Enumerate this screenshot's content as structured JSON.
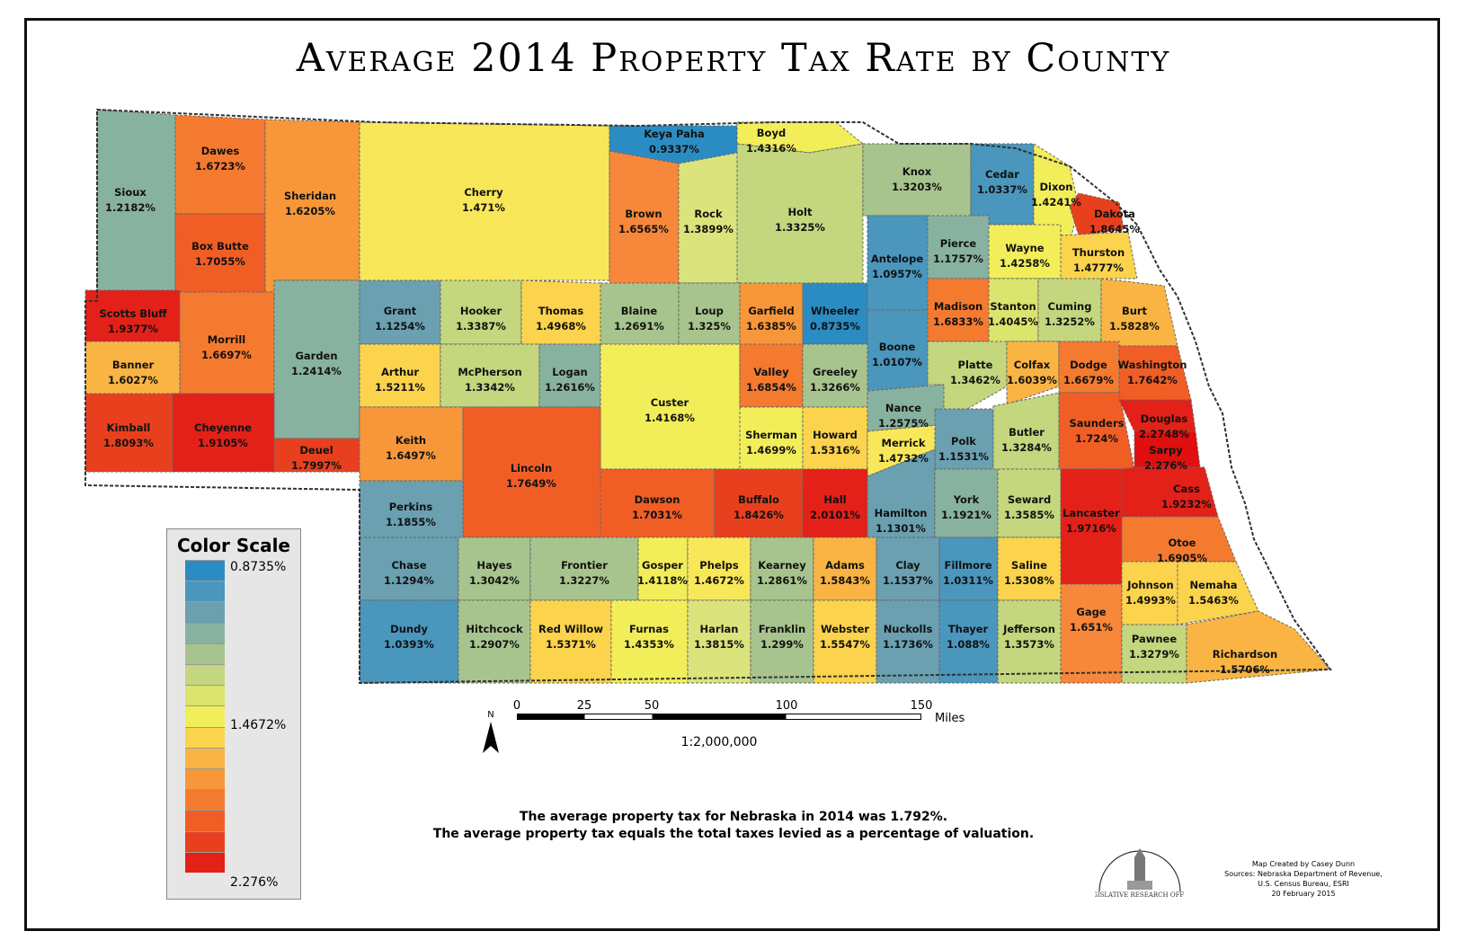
{
  "title": "Average 2014  Property Tax Rate by County",
  "legend": {
    "title": "Color Scale",
    "labels": [
      "0.8735%",
      "1.4672%",
      "2.276%"
    ],
    "colors": [
      "#2b8cc4",
      "#4a96bd",
      "#6aa0b0",
      "#88b2a0",
      "#a8c48e",
      "#c4d67e",
      "#dbe46c",
      "#f2ee5a",
      "#fbd34c",
      "#f9b443",
      "#f7973a",
      "#f47a30",
      "#f05e26",
      "#e8401e",
      "#e32118"
    ]
  },
  "scale": {
    "ticks": [
      "0",
      "25",
      "50",
      "100",
      "150"
    ],
    "units": "Miles",
    "north": "N",
    "ratio": "1:2,000,000"
  },
  "note": {
    "line1": "The average property tax for Nebraska in 2014 was 1.792%.",
    "line2": "The average property tax equals the total taxes levied as a percentage of valuation."
  },
  "credits": {
    "line1": "Map Created by Casey Dunn",
    "line2": "Sources: Nebraska Department of Revenue,",
    "line3": "U.S. Census Bureau, ESRI",
    "line4": "20 February 2015",
    "logo_text": "LEGISLATIVE RESEARCH OFFICE"
  },
  "counties": [
    {
      "name": "Sioux",
      "rate": "1.2182%",
      "color": "#88b2a0"
    },
    {
      "name": "Dawes",
      "rate": "1.6723%",
      "color": "#f47a30"
    },
    {
      "name": "Box Butte",
      "rate": "1.7055%",
      "color": "#f05e26"
    },
    {
      "name": "Sheridan",
      "rate": "1.6205%",
      "color": "#f7973a"
    },
    {
      "name": "Cherry",
      "rate": "1.471%",
      "color": "#f9e75a"
    },
    {
      "name": "Keya Paha",
      "rate": "0.9337%",
      "color": "#2b8cc4"
    },
    {
      "name": "Boyd",
      "rate": "1.4316%",
      "color": "#f2ee5a"
    },
    {
      "name": "Brown",
      "rate": "1.6565%",
      "color": "#f7873a"
    },
    {
      "name": "Rock",
      "rate": "1.3899%",
      "color": "#dbe47c"
    },
    {
      "name": "Holt",
      "rate": "1.3325%",
      "color": "#c4d67e"
    },
    {
      "name": "Knox",
      "rate": "1.3203%",
      "color": "#a8c48e"
    },
    {
      "name": "Cedar",
      "rate": "1.0337%",
      "color": "#4a96bd"
    },
    {
      "name": "Dixon",
      "rate": "1.4241%",
      "color": "#f2ee5a"
    },
    {
      "name": "Dakota",
      "rate": "1.8645%",
      "color": "#e8401e"
    },
    {
      "name": "Scotts Bluff",
      "rate": "1.9377%",
      "color": "#e32118"
    },
    {
      "name": "Morrill",
      "rate": "1.6697%",
      "color": "#f47a30"
    },
    {
      "name": "Garden",
      "rate": "1.2414%",
      "color": "#88b2a0"
    },
    {
      "name": "Grant",
      "rate": "1.1254%",
      "color": "#6aa0b0"
    },
    {
      "name": "Hooker",
      "rate": "1.3387%",
      "color": "#c4d67e"
    },
    {
      "name": "Thomas",
      "rate": "1.4968%",
      "color": "#fbd34c"
    },
    {
      "name": "Blaine",
      "rate": "1.2691%",
      "color": "#a8c48e"
    },
    {
      "name": "Loup",
      "rate": "1.325%",
      "color": "#a8c48e"
    },
    {
      "name": "Garfield",
      "rate": "1.6385%",
      "color": "#f7973a"
    },
    {
      "name": "Wheeler",
      "rate": "0.8735%",
      "color": "#2b8cc4"
    },
    {
      "name": "Antelope",
      "rate": "1.0957%",
      "color": "#4a96bd"
    },
    {
      "name": "Pierce",
      "rate": "1.1757%",
      "color": "#88b2a0"
    },
    {
      "name": "Wayne",
      "rate": "1.4258%",
      "color": "#f2ee5a"
    },
    {
      "name": "Thurston",
      "rate": "1.4777%",
      "color": "#fbd34c"
    },
    {
      "name": "Banner",
      "rate": "1.6027%",
      "color": "#f9b443"
    },
    {
      "name": "Arthur",
      "rate": "1.5211%",
      "color": "#fbd34c"
    },
    {
      "name": "McPherson",
      "rate": "1.3342%",
      "color": "#c4d67e"
    },
    {
      "name": "Logan",
      "rate": "1.2616%",
      "color": "#88b2a0"
    },
    {
      "name": "Custer",
      "rate": "1.4168%",
      "color": "#f2ee5a"
    },
    {
      "name": "Valley",
      "rate": "1.6854%",
      "color": "#f47a30"
    },
    {
      "name": "Greeley",
      "rate": "1.3266%",
      "color": "#a8c48e"
    },
    {
      "name": "Boone",
      "rate": "1.0107%",
      "color": "#4a96bd"
    },
    {
      "name": "Madison",
      "rate": "1.6833%",
      "color": "#f47a30"
    },
    {
      "name": "Stanton",
      "rate": "1.4045%",
      "color": "#dbe46c"
    },
    {
      "name": "Cuming",
      "rate": "1.3252%",
      "color": "#c4d67e"
    },
    {
      "name": "Burt",
      "rate": "1.5828%",
      "color": "#f9b443"
    },
    {
      "name": "Kimball",
      "rate": "1.8093%",
      "color": "#e8401e"
    },
    {
      "name": "Cheyenne",
      "rate": "1.9105%",
      "color": "#e32118"
    },
    {
      "name": "Deuel",
      "rate": "1.7997%",
      "color": "#e8401e"
    },
    {
      "name": "Keith",
      "rate": "1.6497%",
      "color": "#f7973a"
    },
    {
      "name": "Lincoln",
      "rate": "1.7649%",
      "color": "#f05e26"
    },
    {
      "name": "Nance",
      "rate": "1.2575%",
      "color": "#88b2a0"
    },
    {
      "name": "Platte",
      "rate": "1.3462%",
      "color": "#c4d67e"
    },
    {
      "name": "Colfax",
      "rate": "1.6039%",
      "color": "#f9b443"
    },
    {
      "name": "Dodge",
      "rate": "1.6679%",
      "color": "#f47a30"
    },
    {
      "name": "Washington",
      "rate": "1.7642%",
      "color": "#f05e26"
    },
    {
      "name": "Sherman",
      "rate": "1.4699%",
      "color": "#f2ee5a"
    },
    {
      "name": "Howard",
      "rate": "1.5316%",
      "color": "#fbd34c"
    },
    {
      "name": "Merrick",
      "rate": "1.4732%",
      "color": "#f9e75a"
    },
    {
      "name": "Polk",
      "rate": "1.1531%",
      "color": "#6aa0b0"
    },
    {
      "name": "Butler",
      "rate": "1.3284%",
      "color": "#c4d67e"
    },
    {
      "name": "Saunders",
      "rate": "1.724%",
      "color": "#f05e26"
    },
    {
      "name": "Douglas",
      "rate": "2.2748%",
      "color": "#e32118"
    },
    {
      "name": "Sarpy",
      "rate": "2.276%",
      "color": "#e01010"
    },
    {
      "name": "Perkins",
      "rate": "1.1855%",
      "color": "#6aa0b0"
    },
    {
      "name": "Dawson",
      "rate": "1.7031%",
      "color": "#f05e26"
    },
    {
      "name": "Buffalo",
      "rate": "1.8426%",
      "color": "#e8401e"
    },
    {
      "name": "Hall",
      "rate": "2.0101%",
      "color": "#e32118"
    },
    {
      "name": "Hamilton",
      "rate": "1.1301%",
      "color": "#6aa0b0"
    },
    {
      "name": "York",
      "rate": "1.1921%",
      "color": "#88b2a0"
    },
    {
      "name": "Seward",
      "rate": "1.3585%",
      "color": "#c4d67e"
    },
    {
      "name": "Lancaster",
      "rate": "1.9716%",
      "color": "#e32118"
    },
    {
      "name": "Cass",
      "rate": "1.9232%",
      "color": "#e32118"
    },
    {
      "name": "Chase",
      "rate": "1.1294%",
      "color": "#6aa0b0"
    },
    {
      "name": "Hayes",
      "rate": "1.3042%",
      "color": "#a8c48e"
    },
    {
      "name": "Frontier",
      "rate": "1.3227%",
      "color": "#a8c48e"
    },
    {
      "name": "Gosper",
      "rate": "1.4118%",
      "color": "#f2ee5a"
    },
    {
      "name": "Phelps",
      "rate": "1.4672%",
      "color": "#f9e75a"
    },
    {
      "name": "Kearney",
      "rate": "1.2861%",
      "color": "#a8c48e"
    },
    {
      "name": "Adams",
      "rate": "1.5843%",
      "color": "#f9b443"
    },
    {
      "name": "Clay",
      "rate": "1.1537%",
      "color": "#6aa0b0"
    },
    {
      "name": "Fillmore",
      "rate": "1.0311%",
      "color": "#4a96bd"
    },
    {
      "name": "Saline",
      "rate": "1.5308%",
      "color": "#fbd34c"
    },
    {
      "name": "Otoe",
      "rate": "1.6905%",
      "color": "#f47a30"
    },
    {
      "name": "Dundy",
      "rate": "1.0393%",
      "color": "#4a96bd"
    },
    {
      "name": "Hitchcock",
      "rate": "1.2907%",
      "color": "#a8c48e"
    },
    {
      "name": "Red Willow",
      "rate": "1.5371%",
      "color": "#fbd34c"
    },
    {
      "name": "Furnas",
      "rate": "1.4353%",
      "color": "#f2ee5a"
    },
    {
      "name": "Harlan",
      "rate": "1.3815%",
      "color": "#dbe47c"
    },
    {
      "name": "Franklin",
      "rate": "1.299%",
      "color": "#a8c48e"
    },
    {
      "name": "Webster",
      "rate": "1.5547%",
      "color": "#fbd34c"
    },
    {
      "name": "Nuckolls",
      "rate": "1.1736%",
      "color": "#6aa0b0"
    },
    {
      "name": "Thayer",
      "rate": "1.088%",
      "color": "#4a96bd"
    },
    {
      "name": "Jefferson",
      "rate": "1.3573%",
      "color": "#c4d67e"
    },
    {
      "name": "Gage",
      "rate": "1.651%",
      "color": "#f7873a"
    },
    {
      "name": "Johnson",
      "rate": "1.4993%",
      "color": "#fbd34c"
    },
    {
      "name": "Nemaha",
      "rate": "1.5463%",
      "color": "#fbd34c"
    },
    {
      "name": "Pawnee",
      "rate": "1.3279%",
      "color": "#c4d67e"
    },
    {
      "name": "Richardson",
      "rate": "1.5706%",
      "color": "#f9b443"
    }
  ]
}
